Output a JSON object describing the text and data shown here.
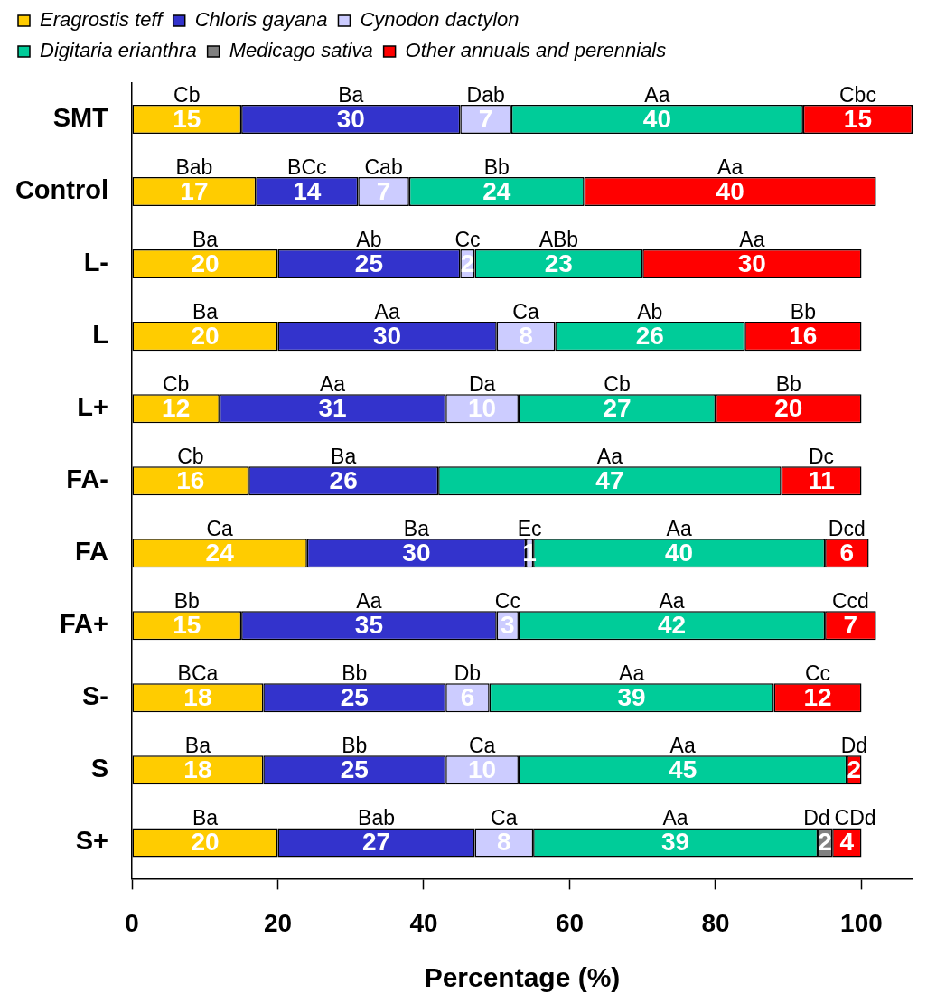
{
  "chart_data": {
    "type": "bar",
    "orientation": "horizontal",
    "stacked": true,
    "categories": [
      "SMT",
      "Control",
      "L-",
      "L",
      "L+",
      "FA-",
      "FA",
      "FA+",
      "S-",
      "S",
      "S+"
    ],
    "series": [
      {
        "name": "Eragrostis teff",
        "color": "#ffcc00",
        "values": [
          15,
          17,
          20,
          20,
          12,
          16,
          24,
          15,
          18,
          18,
          20
        ]
      },
      {
        "name": "Chloris gayana",
        "color": "#3333cc",
        "values": [
          30,
          14,
          25,
          30,
          31,
          26,
          30,
          35,
          25,
          25,
          27
        ]
      },
      {
        "name": "Cynodon dactylon",
        "color": "#ccccff",
        "values": [
          7,
          7,
          2,
          8,
          10,
          null,
          1,
          3,
          6,
          10,
          8
        ]
      },
      {
        "name": "Digitaria erianthra",
        "color": "#00cc99",
        "values": [
          40,
          24,
          23,
          26,
          27,
          47,
          40,
          42,
          39,
          45,
          39
        ]
      },
      {
        "name": "Medicago sativa",
        "color": "#808080",
        "values": [
          null,
          null,
          null,
          null,
          null,
          null,
          null,
          null,
          null,
          null,
          2
        ]
      },
      {
        "name": "Other annuals and perennials",
        "color": "#ff0000",
        "values": [
          15,
          40,
          30,
          16,
          20,
          11,
          6,
          7,
          12,
          2,
          4
        ]
      }
    ],
    "xlabel": "Percentage (%)",
    "xlim": [
      0,
      107
    ],
    "xticks": [
      0,
      20,
      40,
      60,
      80,
      100
    ],
    "legend": "top",
    "data_labels": true,
    "annotations": [
      "Cb",
      "Ba",
      "Dab",
      "Aa",
      "Cbc",
      "Bab",
      "BCc",
      "Cab",
      "Bb",
      "Aa",
      "Ba",
      "Ab",
      "Cc",
      "ABb",
      "Aa",
      "Ba",
      "Aa",
      "Ca",
      "Ab",
      "Bb",
      "Cb",
      "Aa",
      "Da",
      "Cb",
      "Bb",
      "Cb",
      "Ba",
      "Aa",
      "Dc",
      "Ca",
      "Ba",
      "Ec",
      "Aa",
      "Dcd",
      "Bb",
      "Aa",
      "Cc",
      "Aa",
      "Ccd",
      "BCa",
      "Bb",
      "Db",
      "Aa",
      "Cc",
      "Ba",
      "Bb",
      "Ca",
      "Aa",
      "Dd",
      "Ba",
      "Bab",
      "Ca",
      "Aa",
      "Dd",
      "CDd"
    ]
  }
}
